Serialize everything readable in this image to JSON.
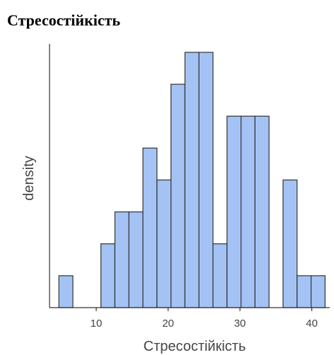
{
  "page": {
    "title": "Стресостійкість"
  },
  "chart_data": {
    "type": "bar",
    "title": "Стресостійкість",
    "xlabel": "Стресостійкість",
    "ylabel": "density",
    "xlim": [
      3.5,
      42.5
    ],
    "ylim": [
      0,
      8
    ],
    "bin_width": 1.95,
    "bin_starts": [
      4.8,
      10.65,
      12.6,
      14.55,
      16.5,
      18.45,
      20.4,
      22.35,
      24.3,
      26.25,
      28.2,
      30.15,
      32.1,
      36.0,
      37.95,
      39.9
    ],
    "values": [
      1,
      2,
      3,
      3,
      5,
      4,
      7,
      8,
      8,
      2,
      6,
      6,
      6,
      4,
      1,
      1
    ],
    "xticks": [
      10,
      20,
      30,
      40
    ],
    "bar_color": "#a4c2f4",
    "bar_edge_color": "#333333",
    "grid": false
  }
}
